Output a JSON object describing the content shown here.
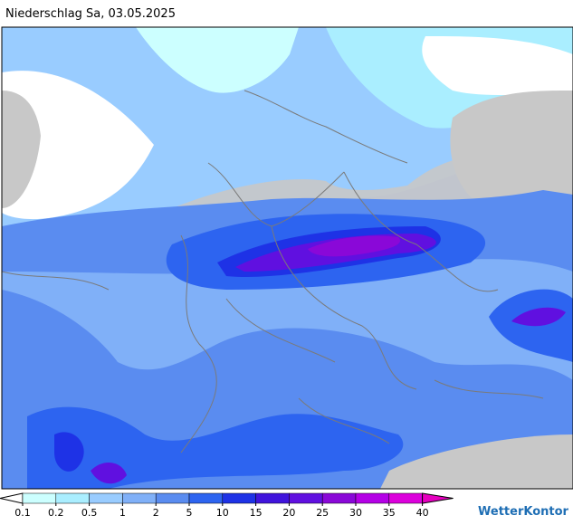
{
  "title": "Niederschlag Sa, 03.05.2025",
  "legend": {
    "ticks": [
      0.1,
      0.2,
      0.5,
      1,
      2,
      5,
      10,
      15,
      20,
      25,
      30,
      35,
      40
    ],
    "colors": [
      "#ffffff",
      "#ccffff",
      "#aaeeff",
      "#99ccff",
      "#80b0f8",
      "#5a8cf0",
      "#2d64f0",
      "#1e32e6",
      "#4014dc",
      "#6010e0",
      "#8a08d8",
      "#b400e6",
      "#dc00dc",
      "#e600c0"
    ]
  },
  "brand": "WetterKontor"
}
